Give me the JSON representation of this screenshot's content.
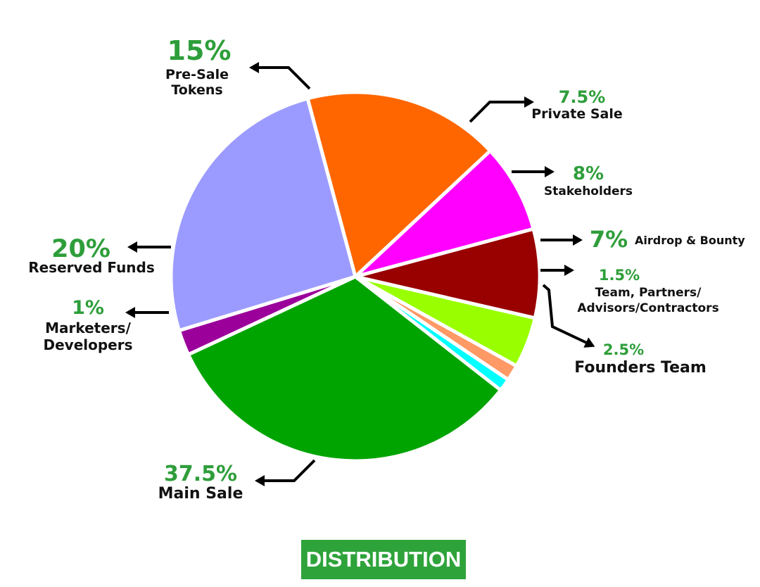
{
  "chart_data": {
    "type": "pie",
    "title": "DISTRIBUTION",
    "slices": [
      {
        "label_lines": [
          "Main Sale"
        ],
        "percent_label": "37.5%",
        "value": 37.5,
        "color": "#00a400"
      },
      {
        "label_lines": [
          "Marketers/",
          "Developers"
        ],
        "percent_label": "1%",
        "value": 1,
        "color": "#9b009b"
      },
      {
        "label_lines": [
          "Reserved Funds"
        ],
        "percent_label": "20%",
        "value": 20,
        "color": "#9b9bff"
      },
      {
        "label_lines": [
          "Pre-Sale",
          "Tokens"
        ],
        "percent_label": "15%",
        "value": 15,
        "color": "#ff6600"
      },
      {
        "label_lines": [
          "Private Sale"
        ],
        "percent_label": "7.5%",
        "value": 7.5,
        "color": "#ff00ff"
      },
      {
        "label_lines": [
          "Stakeholders"
        ],
        "percent_label": "8%",
        "value": 8,
        "color": "#990000"
      },
      {
        "label_lines": [
          "Airdrop & Bounty"
        ],
        "percent_label": "7%",
        "value": 7,
        "color": "#99ff00"
      },
      {
        "label_lines": [
          "Team, Partners/",
          "Advisors/Contractors"
        ],
        "percent_label": "1.5%",
        "value": 1.5,
        "color": "#ff9966"
      },
      {
        "label_lines": [
          "Founders Team"
        ],
        "percent_label": "2.5%",
        "value": 2.5,
        "color": "#00ffff"
      }
    ]
  }
}
